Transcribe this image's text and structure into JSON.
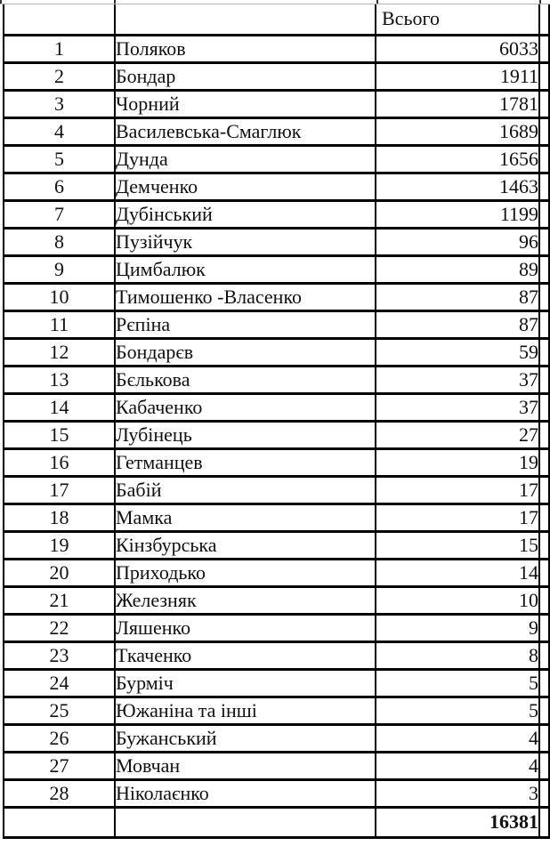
{
  "page": {
    "background": "#ffffff",
    "grid_color": "#000000",
    "cropped_gridline_color": "#b3b3bc"
  },
  "table": {
    "header": {
      "rank": "",
      "name": "",
      "total_label": "Всього"
    },
    "rows": [
      {
        "rank": "1",
        "name": "Поляков",
        "value": "6033"
      },
      {
        "rank": "2",
        "name": "Бондар",
        "value": "1911"
      },
      {
        "rank": "3",
        "name": "Чорний",
        "value": "1781"
      },
      {
        "rank": "4",
        "name": "Василевська-Смаглюк",
        "value": "1689"
      },
      {
        "rank": "5",
        "name": "Дунда",
        "value": "1656"
      },
      {
        "rank": "6",
        "name": "Демченко",
        "value": "1463"
      },
      {
        "rank": "7",
        "name": "Дубінський",
        "value": "1199"
      },
      {
        "rank": "8",
        "name": "Пузійчук",
        "value": "96"
      },
      {
        "rank": "9",
        "name": "Цимбалюк",
        "value": "89"
      },
      {
        "rank": "10",
        "name": "Тимошенко -Власенко",
        "value": "87"
      },
      {
        "rank": "11",
        "name": "Рєпіна",
        "value": "87"
      },
      {
        "rank": "12",
        "name": "Бондарєв",
        "value": "59"
      },
      {
        "rank": "13",
        "name": "Бєлькова",
        "value": "37"
      },
      {
        "rank": "14",
        "name": "Кабаченко",
        "value": "37"
      },
      {
        "rank": "15",
        "name": "Лубінець",
        "value": "27"
      },
      {
        "rank": "16",
        "name": "Гетманцев",
        "value": "19"
      },
      {
        "rank": "17",
        "name": "Бабій",
        "value": "17"
      },
      {
        "rank": "18",
        "name": "Мамка",
        "value": "17"
      },
      {
        "rank": "19",
        "name": "Кінзбурська",
        "value": "15"
      },
      {
        "rank": "20",
        "name": "Приходько",
        "value": "14"
      },
      {
        "rank": "21",
        "name": "Железняк",
        "value": "10"
      },
      {
        "rank": "22",
        "name": "Ляшенко",
        "value": "9"
      },
      {
        "rank": "23",
        "name": "Ткаченко",
        "value": "8"
      },
      {
        "rank": "24",
        "name": "Бурміч",
        "value": "5"
      },
      {
        "rank": "25",
        "name": "Южаніна та інші",
        "value": "5"
      },
      {
        "rank": "26",
        "name": "Бужанський",
        "value": "4"
      },
      {
        "rank": "27",
        "name": "Мовчан",
        "value": "4"
      },
      {
        "rank": "28",
        "name": "Ніколаєнко",
        "value": "3"
      }
    ],
    "total_value": "16381"
  }
}
